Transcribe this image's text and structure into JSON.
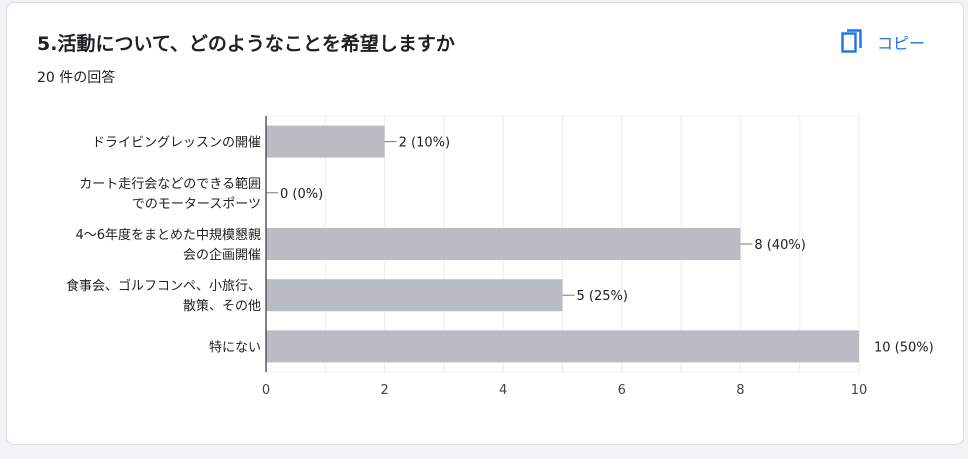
{
  "card": {
    "title": "5.活動について、どのようなことを希望しますか",
    "response_count": "20 件の回答",
    "copy_label": "コピー",
    "copy_icon": "copy-icon"
  },
  "colors": {
    "bar": "#b9bcc2",
    "accent": "#1a73e8",
    "text": "#202124",
    "grid": "#eeeeee"
  },
  "chart_data": {
    "type": "bar",
    "orientation": "horizontal",
    "categories": [
      [
        "ドライビングレッスンの開催"
      ],
      [
        "カート走行会などのできる範囲",
        "でのモータースポーツ"
      ],
      [
        "4〜6年度をまとめた中規模懇親",
        "会の企画開催"
      ],
      [
        "食事会、ゴルフコンペ、小旅行、",
        "散策、その他"
      ],
      [
        "特にない"
      ]
    ],
    "values": [
      2,
      0,
      8,
      5,
      10
    ],
    "data_labels": [
      "2 (10%)",
      "0 (0%)",
      "8 (40%)",
      "5 (25%)",
      "10 (50%)"
    ],
    "x_ticks": [
      "0",
      "2",
      "4",
      "6",
      "8",
      "10"
    ],
    "xlim": [
      0,
      10
    ],
    "grid": true
  }
}
